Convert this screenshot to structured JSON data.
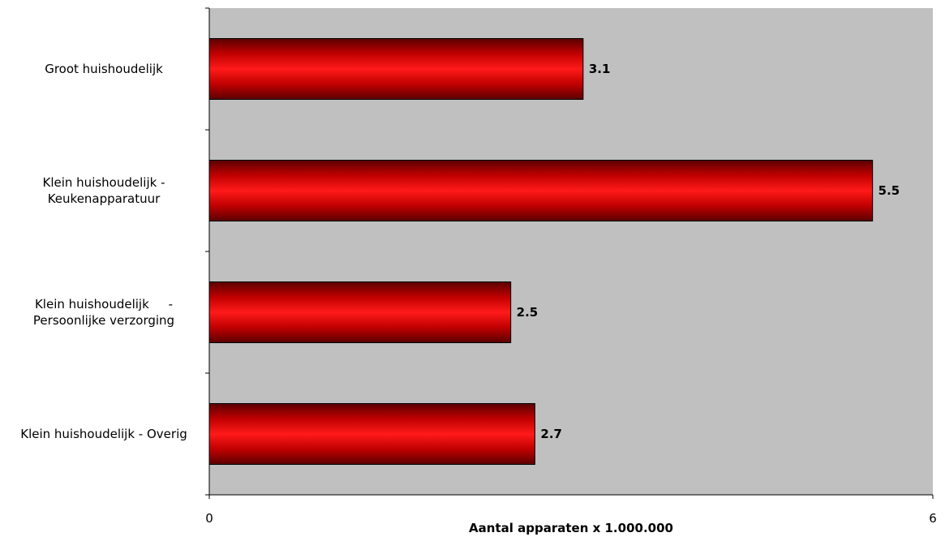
{
  "chart_data": {
    "type": "bar",
    "orientation": "horizontal",
    "categories": [
      [
        "Groot huishoudelijk"
      ],
      [
        "Klein huishoudelijk -",
        "Keukenapparatuur"
      ],
      [
        "Klein huishoudelijk     -",
        "Persoonlijke verzorging"
      ],
      [
        "Klein huishoudelijk - Overig"
      ]
    ],
    "values": [
      3.1,
      5.5,
      2.5,
      2.7
    ],
    "value_labels": [
      "3.1",
      "5.5",
      "2.5",
      "2.7"
    ],
    "xlabel": "Aantal apparaten x 1.000.000",
    "xlim": [
      0,
      6
    ],
    "x_tick_labels": [
      "0",
      "6"
    ],
    "colors": {
      "plot_background": "#c0c0c0",
      "bar_main": "#ff0000",
      "bar_dark": "#6b0000",
      "bar_border": "#000000"
    },
    "grid": false,
    "legend": "none"
  }
}
